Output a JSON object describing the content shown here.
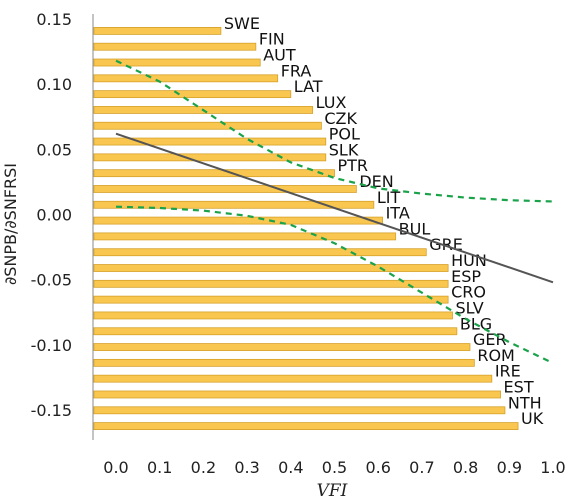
{
  "chart_data": {
    "type": "bar",
    "orientation": "horizontal",
    "title": "",
    "xlabel": "VFI",
    "ylabel": "∂SNPB/∂SNFRSI",
    "xlim": [
      0.0,
      1.0
    ],
    "ylim": [
      -0.15,
      0.15
    ],
    "x_ticks": [
      "0.0",
      "0.1",
      "0.2",
      "0.3",
      "0.4",
      "0.5",
      "0.6",
      "0.7",
      "0.8",
      "0.9",
      "1.0"
    ],
    "y_ticks": [
      "0.15",
      "0.10",
      "0.05",
      "0.00",
      "-0.05",
      "-0.10",
      "-0.15"
    ],
    "grid": false,
    "bar_color": "#f9c74f",
    "bar_edge_color": "#d6a12a",
    "categories": [
      "SWE",
      "FIN",
      "AUT",
      "FRA",
      "LAT",
      "LUX",
      "CZK",
      "POL",
      "SLK",
      "PTR",
      "DEN",
      "LIT",
      "ITA",
      "BUL",
      "GRE",
      "HUN",
      "ESP",
      "CRO",
      "SLV",
      "BLG",
      "GER",
      "ROM",
      "IRE",
      "EST",
      "NTH",
      "UK"
    ],
    "values": [
      0.24,
      0.32,
      0.33,
      0.37,
      0.4,
      0.45,
      0.47,
      0.48,
      0.48,
      0.5,
      0.55,
      0.59,
      0.61,
      0.64,
      0.71,
      0.76,
      0.76,
      0.76,
      0.77,
      0.78,
      0.81,
      0.82,
      0.86,
      0.88,
      0.89,
      0.92
    ],
    "fit_line": {
      "color": "#555555",
      "x": [
        0.0,
        1.0
      ],
      "y": [
        0.062,
        -0.052
      ]
    },
    "confidence_bands": {
      "color": "#1aa34a",
      "style": "dashed",
      "upper": {
        "x": [
          0.0,
          0.1,
          0.2,
          0.3,
          0.4,
          0.5,
          0.6,
          0.7,
          0.8,
          0.9,
          1.0
        ],
        "y": [
          0.118,
          0.102,
          0.08,
          0.058,
          0.04,
          0.028,
          0.02,
          0.016,
          0.013,
          0.011,
          0.01
        ]
      },
      "lower": {
        "x": [
          0.0,
          0.1,
          0.2,
          0.3,
          0.4,
          0.5,
          0.6,
          0.7,
          0.8,
          0.9,
          1.0
        ],
        "y": [
          0.006,
          0.005,
          0.003,
          -0.001,
          -0.008,
          -0.022,
          -0.04,
          -0.06,
          -0.08,
          -0.098,
          -0.114
        ]
      }
    }
  }
}
